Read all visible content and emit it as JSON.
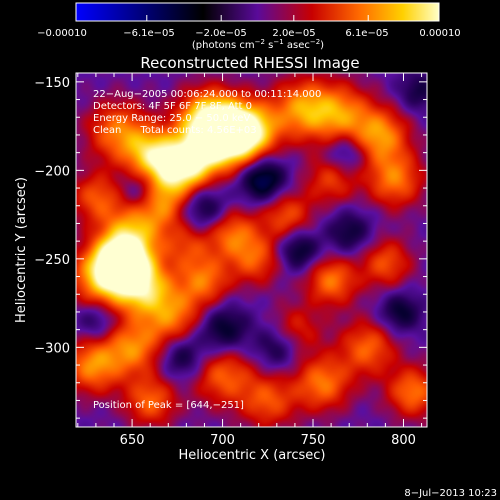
{
  "chart_data": {
    "type": "heatmap",
    "title": "Reconstructed RHESSI Image",
    "xlabel": "Heliocentric X (arcsec)",
    "ylabel": "Heliocentric Y (arcsec)",
    "xlim": [
      619,
      813
    ],
    "ylim": [
      -345,
      -145
    ],
    "x_ticks": [
      650,
      700,
      750,
      800
    ],
    "x_tick_labels": [
      "650",
      "700",
      "750",
      "800"
    ],
    "y_ticks": [
      -150,
      -200,
      -250,
      -300
    ],
    "y_tick_labels": [
      "−150",
      "−200",
      "−250",
      "−300"
    ],
    "colorbar": {
      "range": [
        -0.0001,
        0.0001
      ],
      "ticks": [
        -0.0001,
        -6.1e-05,
        -2e-05,
        2e-05,
        6.1e-05,
        0.0001
      ],
      "tick_labels": [
        "−0.00010",
        "−6.1e−05",
        "−2.0e−05",
        "2.0e−05",
        "6.1e−05",
        "0.00010"
      ],
      "unit_prefix": "(photons cm",
      "unit_exp1": "−2",
      "unit_mid": " s",
      "unit_exp2": "−1",
      "unit_mid2": " asec",
      "unit_exp3": "−2",
      "unit_suffix": ")"
    },
    "colors": [
      "#0000ff",
      "#000000",
      "#5a0a9a",
      "#c80000",
      "#ff6a00",
      "#ffd000",
      "#ffffc8"
    ],
    "annotations": {
      "time_range": "22−Aug−2005 00:06:24.000 to 00:11:14.000",
      "detectors": "Detectors: 4F 5F 6F 7F 8F, Att 0",
      "energy": "Energy Range: 25.0 − 50.0 keV",
      "method": "Clean      Total counts: 4.56E+03",
      "peak": "Position of Peak = [644,−251]"
    },
    "peak_position": [
      644,
      -251
    ],
    "blobs": [
      {
        "x": 644,
        "y": -251,
        "a": 1.0,
        "s": 10
      },
      {
        "x": 633,
        "y": -260,
        "a": 0.7,
        "s": 12
      },
      {
        "x": 655,
        "y": -265,
        "a": 0.75,
        "s": 11
      },
      {
        "x": 650,
        "y": -235,
        "a": 0.6,
        "s": 12
      },
      {
        "x": 642,
        "y": -178,
        "a": 0.55,
        "s": 12
      },
      {
        "x": 660,
        "y": -190,
        "a": 0.6,
        "s": 10
      },
      {
        "x": 672,
        "y": -200,
        "a": 0.6,
        "s": 11
      },
      {
        "x": 665,
        "y": -218,
        "a": 0.5,
        "s": 10
      },
      {
        "x": 692,
        "y": -172,
        "a": 0.9,
        "s": 12
      },
      {
        "x": 702,
        "y": -182,
        "a": 0.92,
        "s": 12
      },
      {
        "x": 715,
        "y": -177,
        "a": 0.75,
        "s": 11
      },
      {
        "x": 682,
        "y": -195,
        "a": 0.65,
        "s": 10
      },
      {
        "x": 744,
        "y": -165,
        "a": 0.6,
        "s": 12
      },
      {
        "x": 765,
        "y": -168,
        "a": 0.55,
        "s": 12
      },
      {
        "x": 787,
        "y": -180,
        "a": 0.6,
        "s": 11
      },
      {
        "x": 795,
        "y": -205,
        "a": 0.55,
        "s": 11
      },
      {
        "x": 735,
        "y": -225,
        "a": 0.45,
        "s": 10
      },
      {
        "x": 760,
        "y": -205,
        "a": 0.4,
        "s": 10
      },
      {
        "x": 705,
        "y": -235,
        "a": 0.5,
        "s": 10
      },
      {
        "x": 718,
        "y": -250,
        "a": 0.45,
        "s": 10
      },
      {
        "x": 690,
        "y": -262,
        "a": 0.5,
        "s": 10
      },
      {
        "x": 672,
        "y": -282,
        "a": 0.55,
        "s": 12
      },
      {
        "x": 650,
        "y": -300,
        "a": 0.55,
        "s": 11
      },
      {
        "x": 628,
        "y": -310,
        "a": 0.6,
        "s": 11
      },
      {
        "x": 760,
        "y": -262,
        "a": 0.55,
        "s": 10
      },
      {
        "x": 790,
        "y": -252,
        "a": 0.45,
        "s": 10
      },
      {
        "x": 780,
        "y": -300,
        "a": 0.5,
        "s": 11
      },
      {
        "x": 805,
        "y": -325,
        "a": 0.55,
        "s": 10
      },
      {
        "x": 700,
        "y": -315,
        "a": 0.5,
        "s": 12
      },
      {
        "x": 725,
        "y": -330,
        "a": 0.45,
        "s": 11
      },
      {
        "x": 755,
        "y": -320,
        "a": 0.55,
        "s": 11
      },
      {
        "x": 660,
        "y": -330,
        "a": 0.5,
        "s": 10
      },
      {
        "x": 680,
        "y": -242,
        "a": 0.35,
        "s": 10
      },
      {
        "x": 740,
        "y": -290,
        "a": 0.35,
        "s": 10
      },
      {
        "x": 630,
        "y": -215,
        "a": 0.45,
        "s": 10
      },
      {
        "x": 722,
        "y": -205,
        "a": -0.6,
        "s": 9
      },
      {
        "x": 742,
        "y": -245,
        "a": -0.45,
        "s": 8
      },
      {
        "x": 690,
        "y": -222,
        "a": -0.4,
        "s": 9
      },
      {
        "x": 770,
        "y": -235,
        "a": -0.35,
        "s": 9
      },
      {
        "x": 700,
        "y": -290,
        "a": -0.45,
        "s": 10
      },
      {
        "x": 678,
        "y": -305,
        "a": -0.4,
        "s": 9
      },
      {
        "x": 798,
        "y": -280,
        "a": -0.4,
        "s": 8
      },
      {
        "x": 768,
        "y": -190,
        "a": -0.35,
        "s": 8
      },
      {
        "x": 655,
        "y": -212,
        "a": -0.35,
        "s": 8
      },
      {
        "x": 808,
        "y": -155,
        "a": -0.3,
        "s": 8
      },
      {
        "x": 730,
        "y": -300,
        "a": -0.35,
        "s": 9
      },
      {
        "x": 630,
        "y": -285,
        "a": -0.3,
        "s": 8
      }
    ]
  },
  "footer": {
    "date_stamp": "8−Jul−2013 10:23"
  }
}
